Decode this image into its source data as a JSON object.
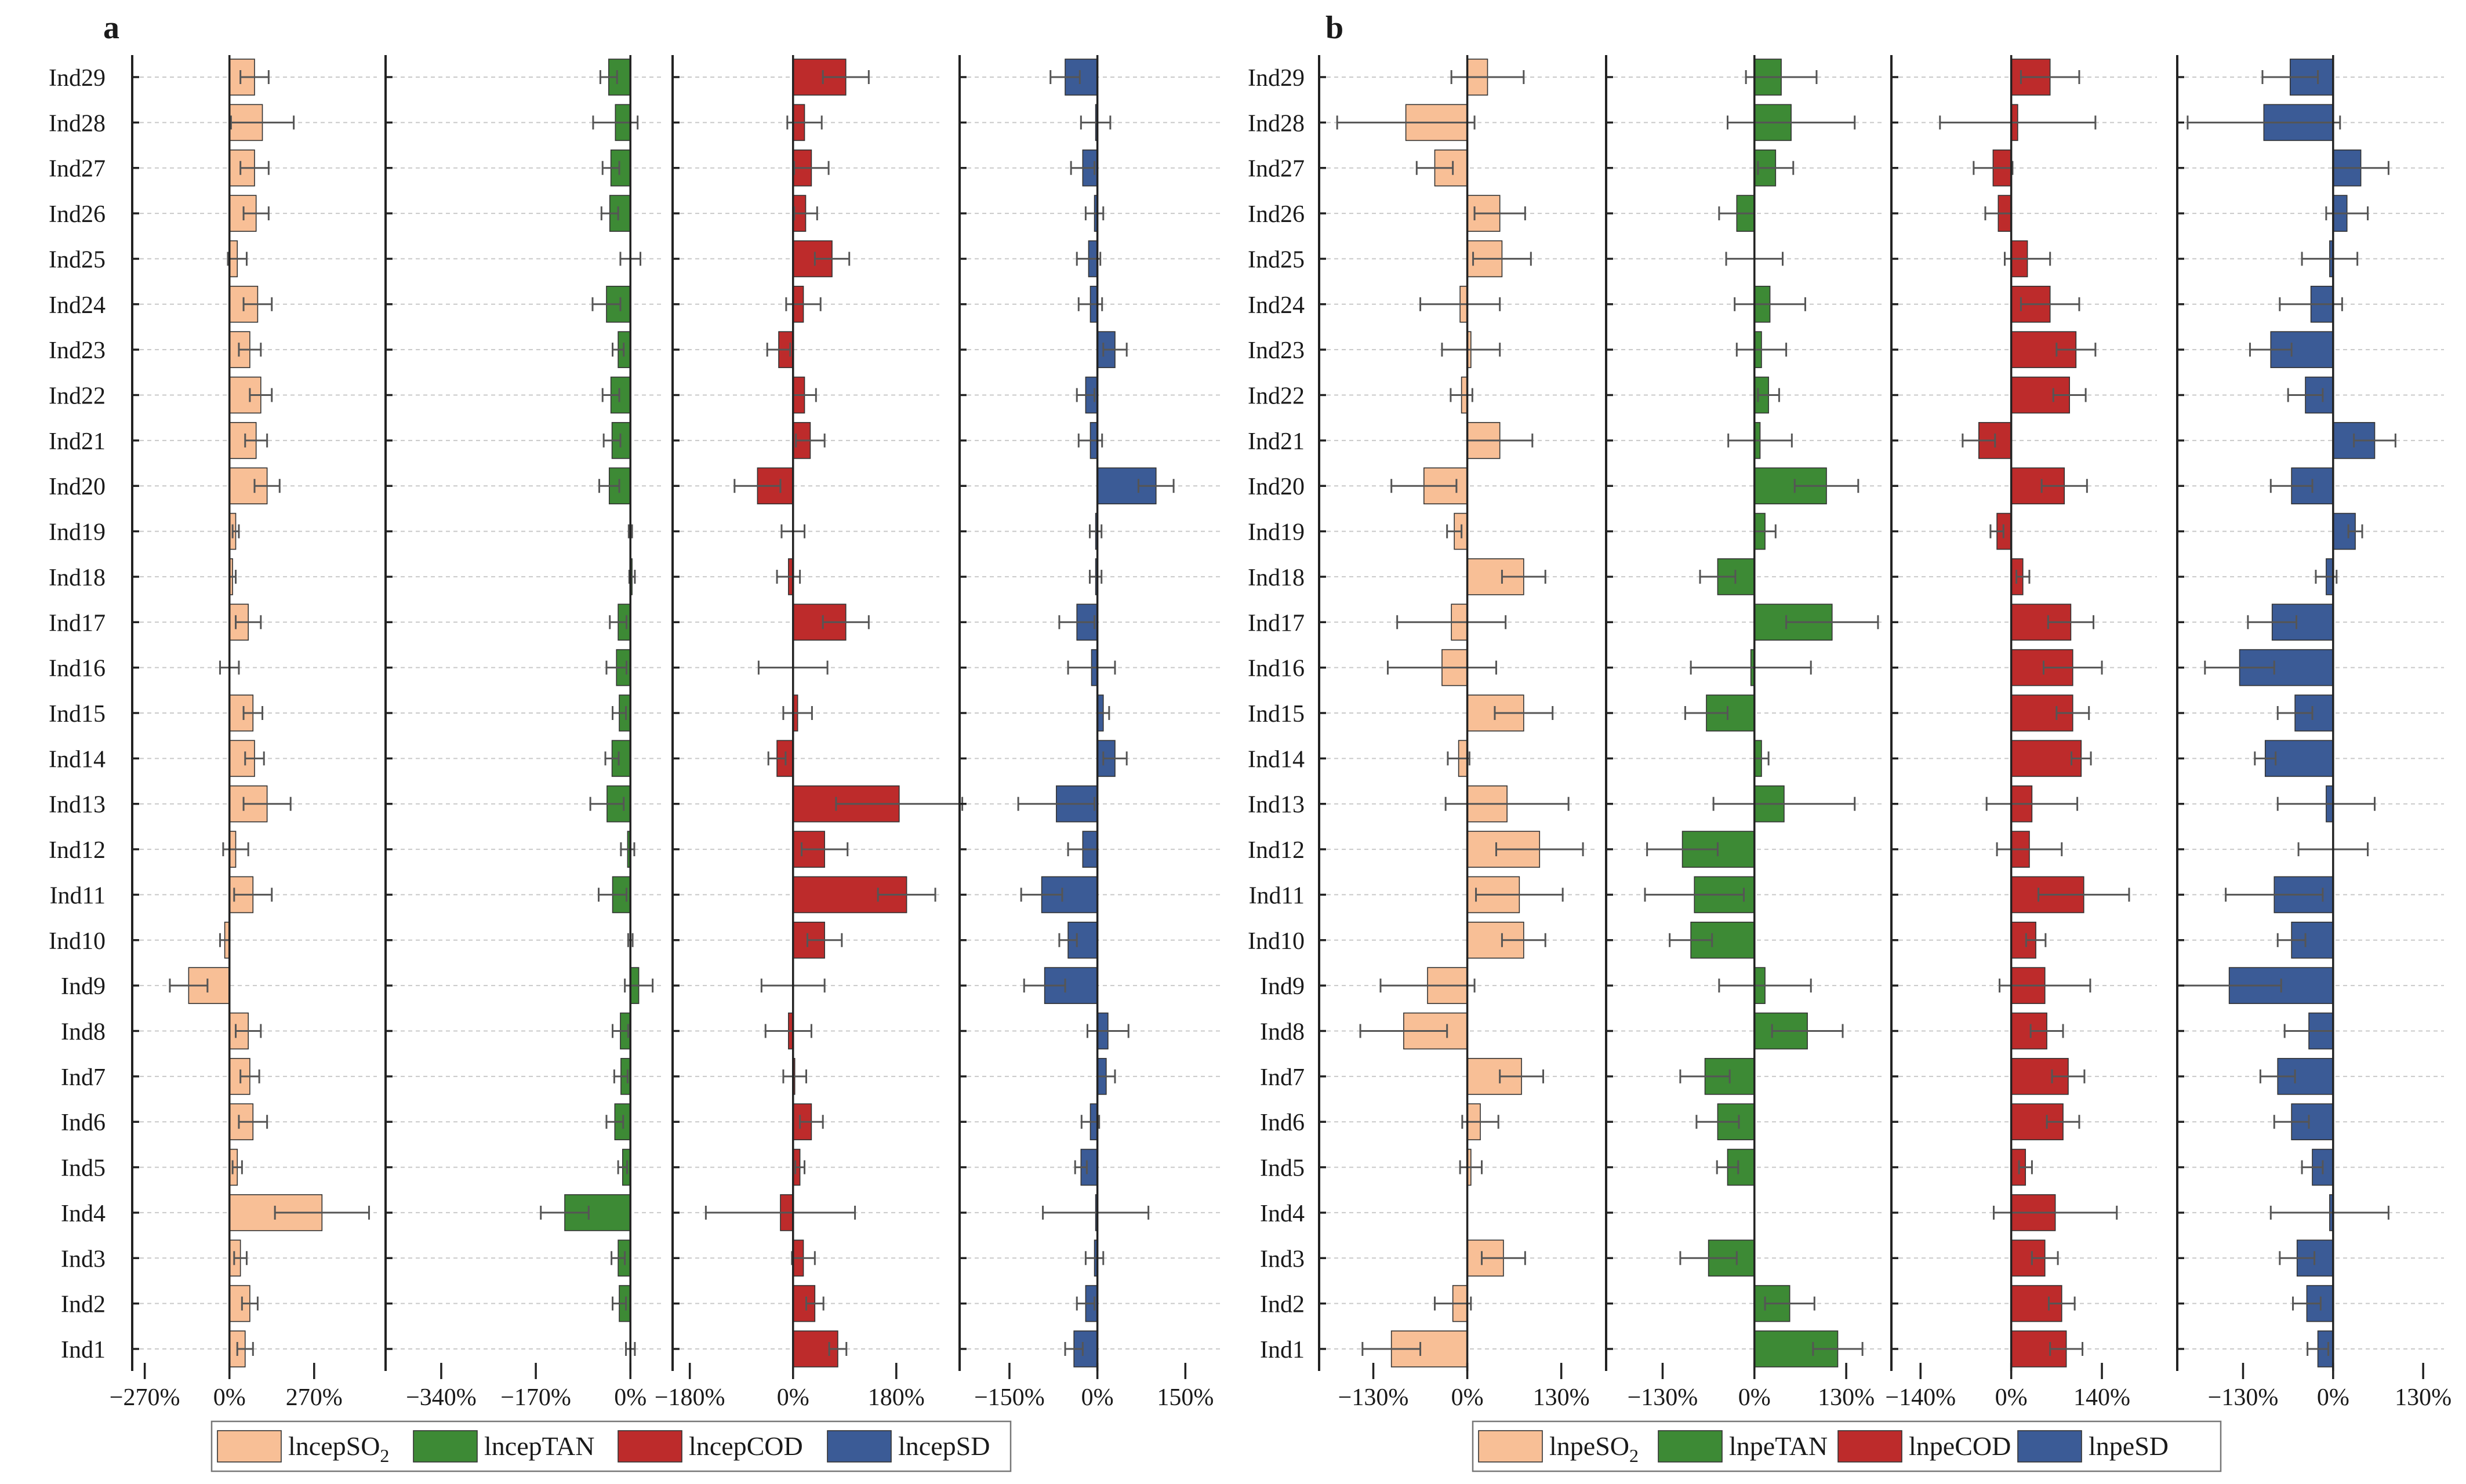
{
  "chart_data": [
    {
      "type": "bar",
      "orientation": "horizontal",
      "panel_label": "a",
      "categories": [
        "Ind1",
        "Ind2",
        "Ind3",
        "Ind4",
        "Ind5",
        "Ind6",
        "Ind7",
        "Ind8",
        "Ind9",
        "Ind10",
        "Ind11",
        "Ind12",
        "Ind13",
        "Ind14",
        "Ind15",
        "Ind16",
        "Ind17",
        "Ind18",
        "Ind19",
        "Ind20",
        "Ind21",
        "Ind22",
        "Ind23",
        "Ind24",
        "Ind25",
        "Ind26",
        "Ind27",
        "Ind28",
        "Ind29"
      ],
      "subplots": [
        {
          "series_name": "lncepSO2",
          "legend_label": "lncepSO",
          "legend_subscript": "2",
          "color": "#f8bf96",
          "xticks": [
            -270,
            0,
            270
          ],
          "xtick_labels": [
            "−270%",
            "0%",
            "270%"
          ],
          "xlim": [
            -310,
            470
          ],
          "values": [
            50,
            65,
            35,
            295,
            25,
            75,
            65,
            60,
            -130,
            -15,
            75,
            20,
            120,
            80,
            75,
            0,
            60,
            10,
            20,
            120,
            85,
            100,
            65,
            90,
            25,
            85,
            80,
            105,
            80
          ],
          "errors": [
            25,
            25,
            20,
            150,
            15,
            45,
            30,
            40,
            60,
            15,
            60,
            40,
            75,
            30,
            30,
            30,
            40,
            10,
            10,
            40,
            35,
            35,
            35,
            45,
            30,
            40,
            45,
            100,
            45
          ]
        },
        {
          "series_name": "lncepTAN",
          "legend_label": "lncepTAN",
          "legend_subscript": "",
          "color": "#3d8a35",
          "xticks": [
            -340,
            -170,
            0
          ],
          "xtick_labels": [
            "−340%",
            "−170%",
            "0%"
          ],
          "xlim": [
            -440,
            55
          ],
          "values": [
            0,
            -20,
            -22,
            -118,
            -14,
            -28,
            -17,
            -18,
            15,
            0,
            -32,
            -5,
            -42,
            -33,
            -20,
            -25,
            -22,
            3,
            0,
            -38,
            -33,
            -35,
            -22,
            -43,
            0,
            -37,
            -35,
            -27,
            -39
          ],
          "errors": [
            8,
            12,
            12,
            43,
            8,
            15,
            12,
            14,
            25,
            4,
            25,
            12,
            30,
            12,
            12,
            18,
            15,
            5,
            3,
            18,
            15,
            15,
            10,
            25,
            18,
            15,
            15,
            40,
            15
          ]
        },
        {
          "series_name": "lncepCOD",
          "legend_label": "lncepCOD",
          "legend_subscript": "",
          "color": "#bd2b2b",
          "xticks": [
            -180,
            0,
            180
          ],
          "xtick_labels": [
            "−180%",
            "0%",
            "180%"
          ],
          "xlim": [
            -210,
            255
          ],
          "values": [
            78,
            38,
            18,
            -22,
            12,
            32,
            3,
            -8,
            0,
            55,
            198,
            55,
            185,
            -28,
            8,
            0,
            92,
            -8,
            0,
            -62,
            30,
            20,
            -25,
            18,
            68,
            22,
            32,
            20,
            92
          ],
          "errors": [
            15,
            15,
            20,
            130,
            8,
            20,
            20,
            40,
            55,
            30,
            50,
            40,
            110,
            15,
            25,
            60,
            40,
            20,
            20,
            40,
            25,
            20,
            20,
            30,
            30,
            20,
            30,
            30,
            40
          ]
        },
        {
          "series_name": "lncepSD",
          "legend_label": "lncepSD",
          "legend_subscript": "",
          "color": "#3b5b96",
          "xticks": [
            -150,
            0,
            150
          ],
          "xtick_labels": [
            "−150%",
            "0%",
            "150%"
          ],
          "xlim": [
            -235,
            210
          ],
          "values": [
            -40,
            -20,
            -5,
            -3,
            -28,
            -12,
            15,
            18,
            -90,
            -50,
            -95,
            -25,
            -70,
            30,
            10,
            -10,
            -35,
            -3,
            -3,
            100,
            -12,
            -20,
            30,
            -12,
            -15,
            -5,
            -25,
            -3,
            -55
          ],
          "errors": [
            15,
            15,
            15,
            90,
            10,
            15,
            15,
            35,
            35,
            15,
            35,
            25,
            65,
            20,
            10,
            40,
            30,
            10,
            10,
            30,
            20,
            15,
            20,
            20,
            20,
            15,
            20,
            25,
            25
          ]
        }
      ]
    },
    {
      "type": "bar",
      "orientation": "horizontal",
      "panel_label": "b",
      "categories": [
        "Ind1",
        "Ind2",
        "Ind3",
        "Ind4",
        "Ind5",
        "Ind6",
        "Ind7",
        "Ind8",
        "Ind9",
        "Ind10",
        "Ind11",
        "Ind12",
        "Ind13",
        "Ind14",
        "Ind15",
        "Ind16",
        "Ind17",
        "Ind18",
        "Ind19",
        "Ind20",
        "Ind21",
        "Ind22",
        "Ind23",
        "Ind24",
        "Ind25",
        "Ind26",
        "Ind27",
        "Ind28",
        "Ind29"
      ],
      "subplots": [
        {
          "series_name": "lnpeSO2",
          "legend_label": "lnpeSO",
          "legend_subscript": "2",
          "color": "#f8bf96",
          "xticks": [
            -130,
            0,
            130
          ],
          "xtick_labels": [
            "−130%",
            "0%",
            "130%"
          ],
          "xlim": [
            -205,
            180
          ],
          "values": [
            -105,
            -20,
            50,
            0,
            5,
            18,
            75,
            -88,
            -55,
            78,
            72,
            100,
            55,
            -12,
            78,
            -35,
            -22,
            78,
            -18,
            -60,
            45,
            -8,
            5,
            -10,
            48,
            45,
            -45,
            -85,
            28
          ],
          "errors": [
            40,
            25,
            30,
            0,
            15,
            25,
            30,
            60,
            65,
            30,
            60,
            60,
            85,
            15,
            40,
            75,
            75,
            30,
            10,
            45,
            45,
            15,
            40,
            55,
            40,
            35,
            25,
            95,
            50
          ]
        },
        {
          "series_name": "lnpeTAN",
          "legend_label": "lnpeTAN",
          "legend_subscript": "",
          "color": "#3d8a35",
          "xticks": [
            -130,
            0,
            130
          ],
          "xtick_labels": [
            "−130%",
            "0%",
            "130%"
          ],
          "xlim": [
            -210,
            180
          ],
          "values": [
            118,
            50,
            -65,
            0,
            -38,
            -52,
            -70,
            75,
            15,
            -90,
            -85,
            -102,
            42,
            10,
            -68,
            -5,
            110,
            -52,
            15,
            102,
            8,
            20,
            10,
            22,
            0,
            -25,
            30,
            52,
            38
          ],
          "errors": [
            35,
            35,
            40,
            0,
            15,
            30,
            35,
            50,
            65,
            30,
            70,
            50,
            100,
            10,
            30,
            85,
            65,
            25,
            15,
            45,
            45,
            15,
            35,
            50,
            40,
            25,
            25,
            90,
            50
          ]
        },
        {
          "series_name": "lnpeCOD",
          "legend_label": "lnpeCOD",
          "legend_subscript": "",
          "color": "#bd2b2b",
          "xticks": [
            -140,
            0,
            140
          ],
          "xtick_labels": [
            "−140%",
            "0%",
            "140%"
          ],
          "xlim": [
            -185,
            225
          ],
          "values": [
            85,
            78,
            52,
            68,
            22,
            80,
            88,
            55,
            52,
            38,
            112,
            28,
            32,
            108,
            95,
            95,
            92,
            18,
            -22,
            82,
            -50,
            90,
            100,
            60,
            25,
            -20,
            -28,
            10,
            60
          ],
          "errors": [
            25,
            20,
            20,
            95,
            10,
            25,
            25,
            25,
            70,
            15,
            70,
            50,
            70,
            15,
            25,
            45,
            35,
            10,
            10,
            35,
            25,
            25,
            30,
            45,
            35,
            20,
            30,
            120,
            45
          ]
        },
        {
          "series_name": "lnpeSD",
          "legend_label": "lnpeSD",
          "legend_subscript": "",
          "color": "#3b5b96",
          "xticks": [
            -130,
            0,
            130
          ],
          "xtick_labels": [
            "−130%",
            "0%",
            "130%"
          ],
          "xlim": [
            -225,
            160
          ],
          "values": [
            -22,
            -38,
            -52,
            -5,
            -30,
            -60,
            -80,
            -35,
            -150,
            -60,
            -85,
            0,
            -10,
            -98,
            -55,
            -135,
            -88,
            -10,
            32,
            -60,
            60,
            -40,
            -90,
            -32,
            -5,
            20,
            40,
            -100,
            -62
          ],
          "errors": [
            15,
            20,
            25,
            85,
            15,
            25,
            25,
            35,
            75,
            20,
            70,
            50,
            70,
            15,
            25,
            50,
            35,
            15,
            10,
            30,
            30,
            25,
            30,
            45,
            40,
            30,
            40,
            110,
            40
          ]
        }
      ]
    }
  ]
}
